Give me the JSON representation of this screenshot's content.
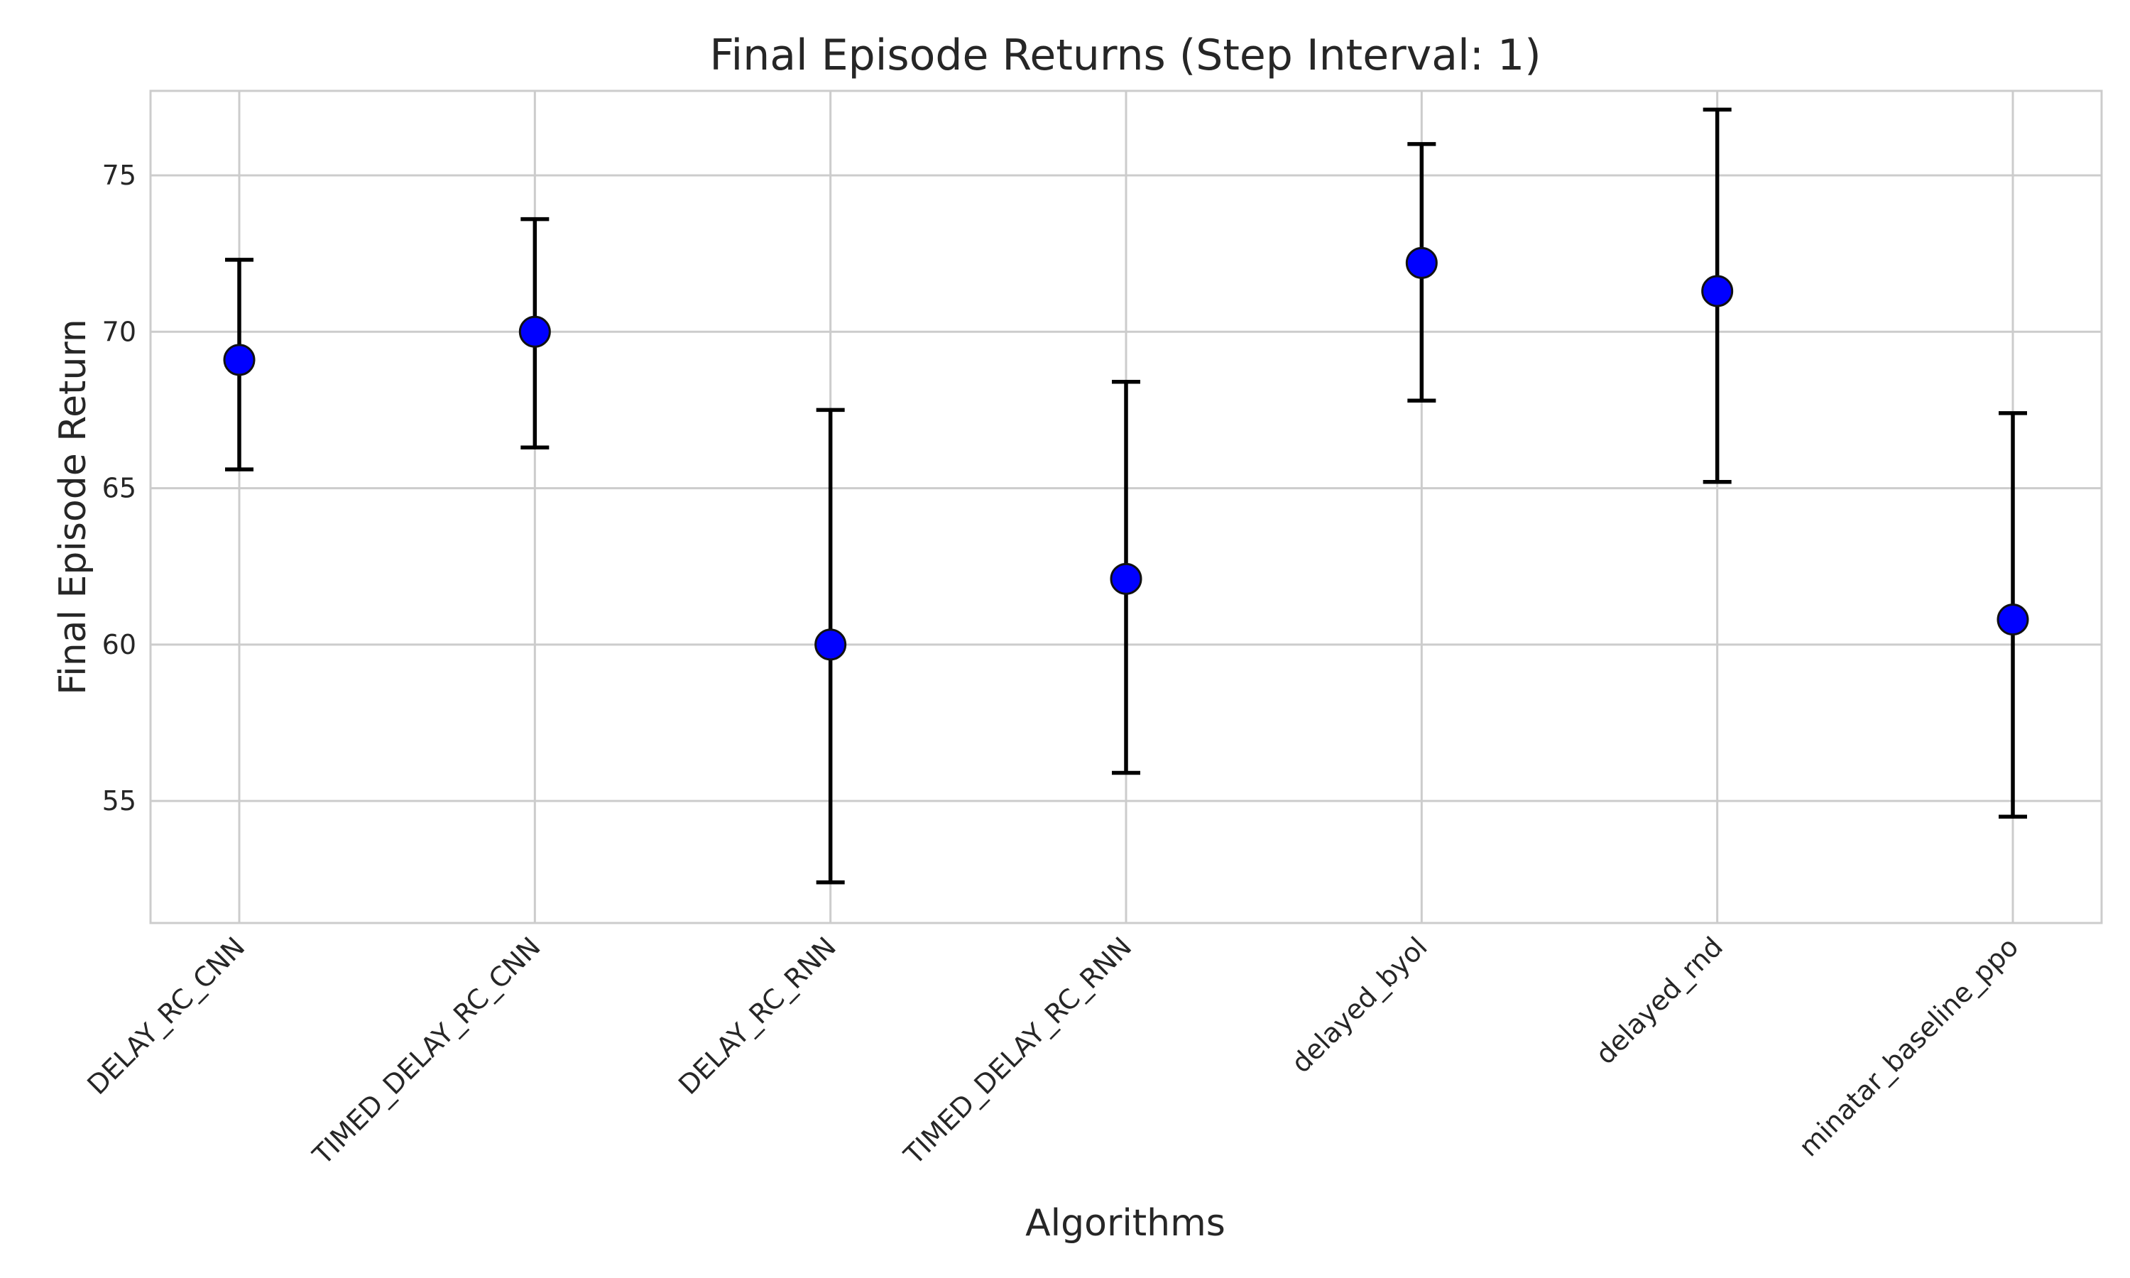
{
  "chart_data": {
    "type": "scatter",
    "title": "Final Episode Returns (Step Interval: 1)",
    "xlabel": "Algorithms",
    "ylabel": "Final Episode Return",
    "categories": [
      "DELAY_RC_CNN",
      "TIMED_DELAY_RC_CNN",
      "DELAY_RC_RNN",
      "TIMED_DELAY_RC_RNN",
      "delayed_byol",
      "delayed_rnd",
      "minatar_baseline_ppo"
    ],
    "series": [
      {
        "values": [
          69.1,
          70.0,
          60.0,
          62.1,
          72.2,
          71.3,
          60.8
        ],
        "error_low": [
          65.6,
          66.3,
          52.4,
          55.9,
          67.8,
          65.2,
          54.5
        ],
        "error_high": [
          72.3,
          73.6,
          67.5,
          68.4,
          76.0,
          77.1,
          67.4
        ]
      }
    ],
    "ylim": [
      51.1,
      77.7
    ],
    "yticks": [
      "55",
      "60",
      "65",
      "70",
      "75"
    ],
    "grid": true,
    "marker_color": "#0000ff",
    "error_color": "#000000"
  }
}
